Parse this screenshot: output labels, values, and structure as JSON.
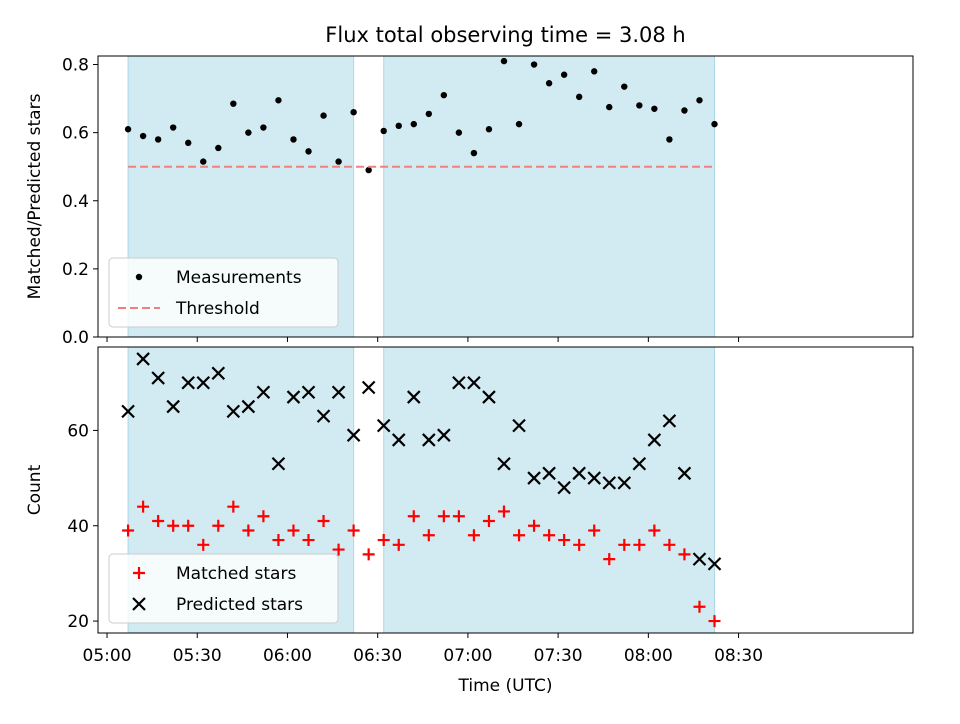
{
  "chart_data": {
    "title": "Flux total observing time = 3.08 h",
    "xlabel": "Time (UTC)",
    "x_ticks": [
      "05:00",
      "05:30",
      "06:00",
      "06:30",
      "07:00",
      "07:30",
      "08:00",
      "08:30"
    ],
    "x_range_minutes_utc": [
      297,
      568
    ],
    "shaded_intervals": [
      [
        "05:07",
        "06:22"
      ],
      [
        "06:32",
        "08:22"
      ]
    ],
    "shade_color": "#add8e6",
    "times": [
      "05:07",
      "05:12",
      "05:17",
      "05:22",
      "05:27",
      "05:32",
      "05:37",
      "05:42",
      "05:47",
      "05:52",
      "05:57",
      "06:02",
      "06:07",
      "06:12",
      "06:17",
      "06:22",
      "06:27",
      "06:32",
      "06:37",
      "06:42",
      "06:47",
      "06:52",
      "06:57",
      "07:02",
      "07:07",
      "07:12",
      "07:17",
      "07:22",
      "07:27",
      "07:32",
      "07:37",
      "07:42",
      "07:47",
      "07:52",
      "07:57",
      "08:02",
      "08:07",
      "08:12",
      "08:17",
      "08:22"
    ],
    "panels": [
      {
        "type": "scatter",
        "ylabel": "Matched/Predicted stars",
        "ylim": [
          0,
          0.825
        ],
        "yticks": [
          "0.0",
          "0.2",
          "0.4",
          "0.6",
          "0.8"
        ],
        "threshold": 0.5,
        "legend_position": "lower-left",
        "series": [
          {
            "name": "Measurements",
            "marker": "dot",
            "color": "#000000",
            "values": [
              0.61,
              0.59,
              0.58,
              0.615,
              0.57,
              0.515,
              0.555,
              0.685,
              0.6,
              0.615,
              0.695,
              0.58,
              0.545,
              0.65,
              0.515,
              0.66,
              0.49,
              0.605,
              0.62,
              0.625,
              0.655,
              0.71,
              0.6,
              0.54,
              0.61,
              0.81,
              0.625,
              0.8,
              0.745,
              0.77,
              0.705,
              0.78,
              0.675,
              0.735,
              0.68,
              0.67,
              0.58,
              0.665,
              0.695,
              0.625
            ]
          },
          {
            "name": "Threshold",
            "marker": "dashed-line",
            "color": "#f08080"
          }
        ]
      },
      {
        "type": "scatter",
        "ylabel": "Count",
        "ylim": [
          17.5,
          77.5
        ],
        "yticks": [
          "20",
          "40",
          "60"
        ],
        "legend_position": "lower-left",
        "series": [
          {
            "name": "Matched stars",
            "marker": "plus",
            "color": "#ff0000",
            "values": [
              39,
              44,
              41,
              40,
              40,
              36,
              40,
              44,
              39,
              42,
              37,
              39,
              37,
              41,
              35,
              39,
              34,
              37,
              36,
              42,
              38,
              42,
              42,
              38,
              41,
              43,
              38,
              40,
              38,
              37,
              36,
              39,
              33,
              36,
              36,
              39,
              36,
              34,
              23,
              20
            ]
          },
          {
            "name": "Predicted stars",
            "marker": "x",
            "color": "#000000",
            "values": [
              64,
              75,
              71,
              65,
              70,
              70,
              72,
              64,
              65,
              68,
              53,
              67,
              68,
              63,
              68,
              59,
              69,
              61,
              58,
              67,
              58,
              59,
              70,
              70,
              67,
              53,
              61,
              50,
              51,
              48,
              51,
              50,
              49,
              49,
              53,
              58,
              62,
              51,
              33,
              32
            ]
          }
        ]
      }
    ]
  }
}
